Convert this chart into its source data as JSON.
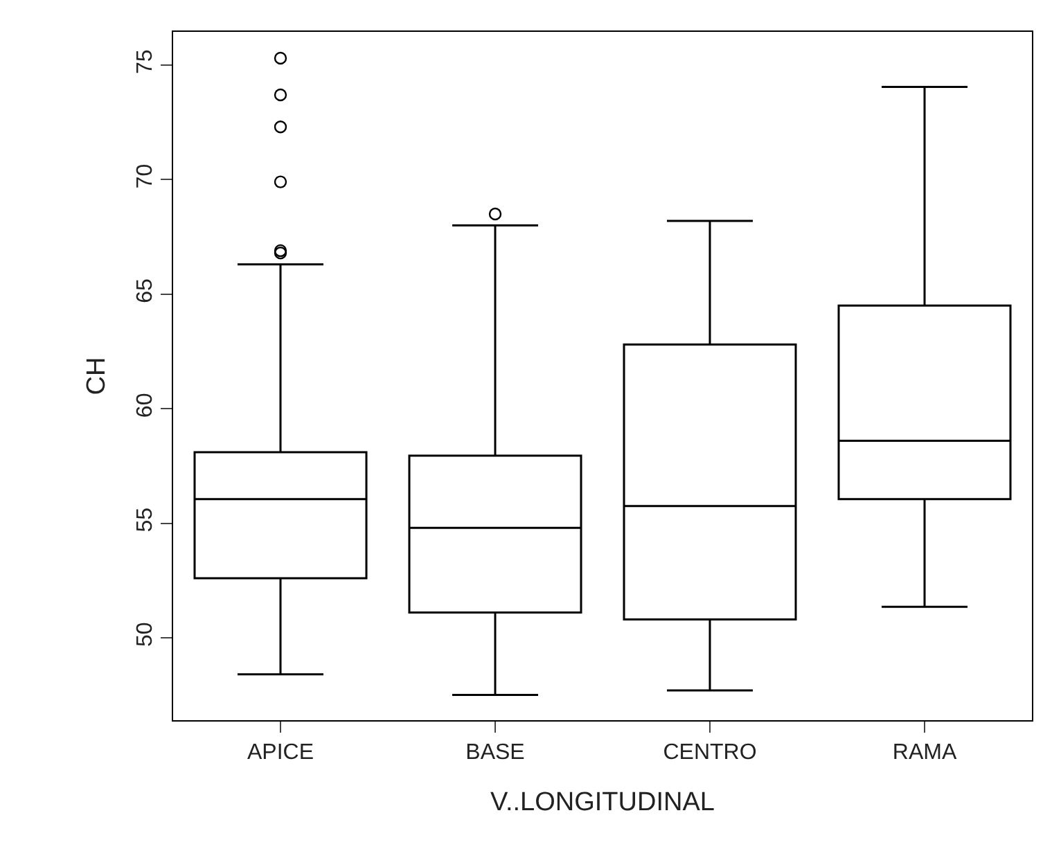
{
  "chart_data": {
    "type": "box",
    "xlabel": "V..LONGITUDINAL",
    "ylabel": "CH",
    "categories": [
      "APICE",
      "BASE",
      "CENTRO",
      "RAMA"
    ],
    "boxes": [
      {
        "low": 48.4,
        "q1": 52.6,
        "median": 56.05,
        "q3": 58.1,
        "high": 66.3,
        "outliers": [
          75.3,
          73.7,
          72.3,
          69.9,
          66.9,
          66.8
        ]
      },
      {
        "low": 47.5,
        "q1": 51.1,
        "median": 54.8,
        "q3": 57.95,
        "high": 68.0,
        "outliers": [
          68.5
        ]
      },
      {
        "low": 47.7,
        "q1": 50.8,
        "median": 55.75,
        "q3": 62.8,
        "high": 68.2
      },
      {
        "low": 51.35,
        "q1": 56.05,
        "median": 58.6,
        "q3": 64.5,
        "high": 74.05
      }
    ],
    "color": "#000000",
    "ylim": [
      46.4,
      76.45
    ],
    "yticks": [
      50,
      55,
      60,
      65,
      70,
      75
    ]
  }
}
